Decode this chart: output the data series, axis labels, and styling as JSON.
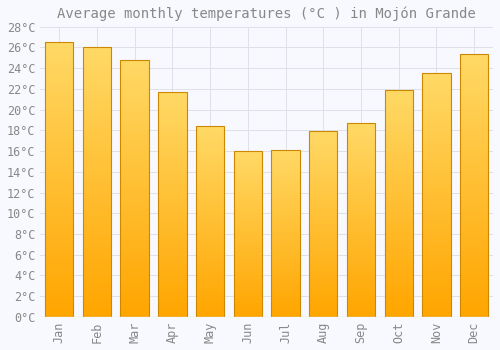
{
  "title": "Average monthly temperatures (°C ) in Mojón Grande",
  "months": [
    "Jan",
    "Feb",
    "Mar",
    "Apr",
    "May",
    "Jun",
    "Jul",
    "Aug",
    "Sep",
    "Oct",
    "Nov",
    "Dec"
  ],
  "values": [
    26.5,
    26.0,
    24.8,
    21.7,
    18.4,
    16.0,
    16.1,
    17.9,
    18.7,
    21.9,
    23.5,
    25.4
  ],
  "bar_color_top": "#FFD966",
  "bar_color_bottom": "#FFA500",
  "bar_edge_color": "#CC8800",
  "background_color": "#F8F8FF",
  "grid_color": "#E0E0E8",
  "text_color": "#888888",
  "ylim": [
    0,
    28
  ],
  "ytick_step": 2,
  "title_fontsize": 10,
  "tick_fontsize": 8.5,
  "font_family": "monospace"
}
